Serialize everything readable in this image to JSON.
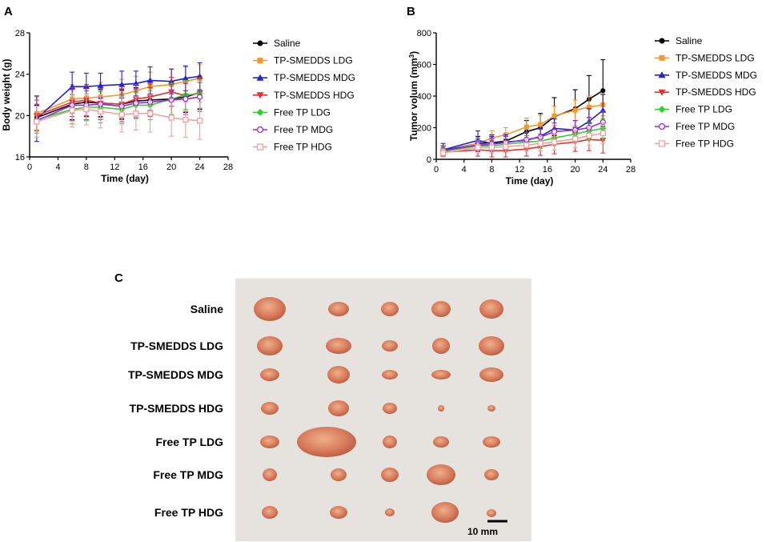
{
  "panels": {
    "a": "A",
    "b": "B",
    "c": "C"
  },
  "legend_labels": [
    "Saline",
    "TP-SMEDDS LDG",
    "TP-SMEDDS MDG",
    "TP-SMEDDS HDG",
    "Free TP LDG",
    "Free TP MDG",
    "Free TP HDG"
  ],
  "colors": {
    "saline": "#000000",
    "smedds_ldg": "#f7962d",
    "smedds_mdg": "#2323d2",
    "smedds_hdg": "#e8302f",
    "free_ldg": "#2fd12f",
    "free_mdg": "#9a2ad6",
    "free_hdg": "#f0a1a1",
    "photo_bg": "#e6e3de",
    "tumor": "#d87c5d"
  },
  "chart_data": [
    {
      "type": "line",
      "title": "",
      "xlabel": "Time (day)",
      "ylabel": "Body weight (g)",
      "xlim": [
        0,
        28
      ],
      "ylim": [
        16,
        28
      ],
      "xticks": [
        "0",
        "4",
        "8",
        "12",
        "16",
        "20",
        "24",
        "28"
      ],
      "yticks": [
        "16",
        "20",
        "24",
        "28"
      ],
      "x": [
        1,
        6,
        8,
        10,
        13,
        15,
        17,
        20,
        22,
        24
      ],
      "series": [
        {
          "name": "Saline",
          "marker": "circle",
          "values": [
            19.8,
            21.1,
            21.3,
            21.2,
            21.1,
            21.4,
            21.5,
            21.6,
            21.8,
            22.2
          ],
          "err": [
            1.2,
            1.5,
            1.4,
            1.3,
            1.4,
            1.3,
            1.5,
            1.6,
            1.5,
            1.6
          ]
        },
        {
          "name": "TP-SMEDDS LDG",
          "marker": "square",
          "values": [
            20.2,
            21.6,
            21.7,
            21.8,
            22.0,
            22.4,
            22.8,
            23.0,
            23.3,
            23.6
          ],
          "err": [
            1.6,
            1.4,
            1.3,
            1.4,
            1.5,
            1.4,
            1.4,
            1.5,
            1.4,
            1.3
          ]
        },
        {
          "name": "TP-SMEDDS MDG",
          "marker": "triangle-up",
          "values": [
            19.7,
            22.8,
            22.8,
            22.9,
            23.0,
            23.1,
            23.4,
            23.3,
            23.6,
            23.8
          ],
          "err": [
            2.2,
            1.4,
            1.3,
            1.2,
            1.3,
            1.2,
            1.3,
            1.2,
            1.2,
            1.3
          ]
        },
        {
          "name": "TP-SMEDDS HDG",
          "marker": "triangle-down",
          "values": [
            20.0,
            21.3,
            21.5,
            21.2,
            21.1,
            21.6,
            21.8,
            22.3,
            21.9,
            22.2
          ],
          "err": [
            1.5,
            1.4,
            1.5,
            1.4,
            1.5,
            1.4,
            1.3,
            1.4,
            1.5,
            1.5
          ]
        },
        {
          "name": "Free TP LDG",
          "marker": "diamond",
          "values": [
            19.6,
            20.6,
            20.8,
            20.8,
            20.6,
            21.0,
            21.0,
            21.6,
            22.0,
            22.1
          ],
          "err": [
            1.3,
            1.4,
            1.3,
            1.5,
            1.4,
            1.3,
            1.4,
            1.5,
            1.4,
            1.4
          ]
        },
        {
          "name": "Free TP MDG",
          "marker": "circle-open",
          "values": [
            19.5,
            21.0,
            21.0,
            21.1,
            20.9,
            21.2,
            21.3,
            21.5,
            21.6,
            21.8
          ],
          "err": [
            1.6,
            1.5,
            1.4,
            1.5,
            1.5,
            1.4,
            1.4,
            1.5,
            1.5,
            1.4
          ]
        },
        {
          "name": "Free TP HDG",
          "marker": "square-open",
          "values": [
            19.4,
            20.5,
            20.6,
            20.4,
            20.1,
            20.2,
            20.2,
            19.8,
            19.6,
            19.5
          ],
          "err": [
            1.5,
            1.6,
            1.5,
            1.6,
            1.7,
            1.6,
            1.8,
            1.8,
            1.7,
            1.8
          ]
        }
      ]
    },
    {
      "type": "line",
      "title": "",
      "xlabel": "Time (day)",
      "ylabel_main": "Tumor volum (mm",
      "ylabel_sup": "3",
      "ylabel_end": ")",
      "xlim": [
        0,
        28
      ],
      "ylim": [
        0,
        800
      ],
      "xticks": [
        "0",
        "4",
        "8",
        "12",
        "16",
        "20",
        "24",
        "28"
      ],
      "yticks": [
        "0",
        "200",
        "400",
        "600",
        "800"
      ],
      "x": [
        1,
        6,
        8,
        10,
        13,
        15,
        17,
        20,
        22,
        24
      ],
      "series": [
        {
          "name": "Saline",
          "marker": "circle",
          "values": [
            55,
            100,
            105,
            115,
            175,
            200,
            270,
            320,
            380,
            435
          ],
          "err": [
            30,
            45,
            50,
            50,
            70,
            90,
            120,
            120,
            150,
            195
          ]
        },
        {
          "name": "TP-SMEDDS LDG",
          "marker": "square",
          "values": [
            50,
            100,
            135,
            155,
            205,
            220,
            275,
            310,
            330,
            345
          ],
          "err": [
            30,
            40,
            45,
            45,
            55,
            60,
            60,
            65,
            70,
            70
          ]
        },
        {
          "name": "TP-SMEDDS MDG",
          "marker": "triangle-up",
          "values": [
            60,
            120,
            100,
            110,
            120,
            145,
            195,
            185,
            240,
            310
          ],
          "err": [
            40,
            60,
            45,
            45,
            50,
            50,
            60,
            60,
            80,
            100
          ]
        },
        {
          "name": "TP-SMEDDS HDG",
          "marker": "triangle-down",
          "values": [
            45,
            60,
            55,
            55,
            65,
            80,
            95,
            110,
            125,
            120
          ],
          "err": [
            25,
            40,
            40,
            40,
            45,
            55,
            60,
            60,
            70,
            80
          ]
        },
        {
          "name": "Free TP LDG",
          "marker": "diamond",
          "values": [
            50,
            85,
            85,
            95,
            110,
            115,
            135,
            160,
            180,
            195
          ],
          "err": [
            25,
            35,
            35,
            35,
            40,
            45,
            45,
            50,
            55,
            60
          ]
        },
        {
          "name": "Free TP MDG",
          "marker": "circle-open",
          "values": [
            55,
            90,
            95,
            105,
            125,
            140,
            175,
            185,
            200,
            235
          ],
          "err": [
            30,
            40,
            40,
            40,
            45,
            50,
            55,
            60,
            65,
            70
          ]
        },
        {
          "name": "Free TP HDG",
          "marker": "square-open",
          "values": [
            40,
            75,
            75,
            80,
            90,
            100,
            110,
            130,
            150,
            165
          ],
          "err": [
            25,
            35,
            35,
            35,
            40,
            45,
            50,
            55,
            60,
            65
          ]
        }
      ]
    }
  ],
  "photo": {
    "row_labels": [
      "Saline",
      "TP-SMEDDS LDG",
      "TP-SMEDDS MDG",
      "TP-SMEDDS HDG",
      "Free TP LDG",
      "Free TP MDG",
      "Free TP HDG"
    ],
    "scale_label": "10 mm"
  }
}
